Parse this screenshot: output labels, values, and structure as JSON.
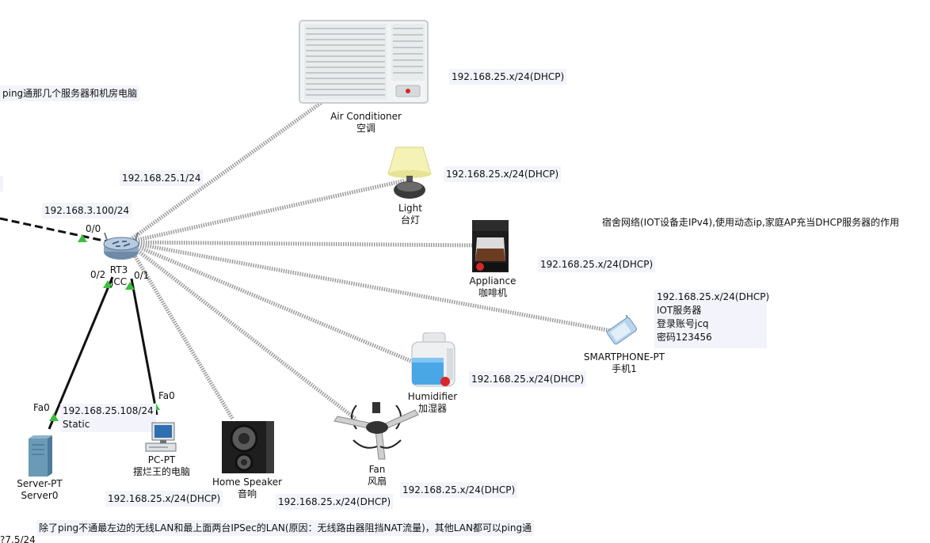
{
  "colors": {
    "wired": "#111111",
    "wireless": "#9a9a9a",
    "link_up": "#3cbf3c",
    "label_bg": "#f3f4fb"
  },
  "notes": {
    "top_left": "ping通那几个服务器和机房电脑",
    "router_ip": "192.168.25.1/24",
    "wan_ip": "192.168.3.100/24",
    "ac_ip": "192.168.25.x/24(DHCP)",
    "light_ip": "192.168.25.x/24(DHCP)",
    "appliance_ip": "192.168.25.x/24(DHCP)",
    "humidifier_ip": "192.168.25.x/24(DHCP)",
    "pc_ip": "192.168.25.x/24(DHCP)",
    "speaker_ip": "192.168.25.x/24(DHCP)",
    "fan_ip": "192.168.25.x/24(DHCP)",
    "server_ip": "192.168.25.108/24",
    "server_mode": "Static",
    "dorm_note": "宿舍网络(IOT设备走IPv4),使用动态ip,家庭AP充当DHCP服务器的作用",
    "phone_ip": "192.168.25.x/24(DHCP)",
    "phone_iot": "IOT服务器",
    "phone_account": "登录账号jcq",
    "phone_password": "密码123456",
    "bottom_note": "除了ping不通最左边的无线LAN和最上面两台IPSec的LAN(原因：无线路由器阻挡NAT流量)，其他LAN都可以ping通",
    "bottom_left_cut": "?7.5/24"
  },
  "ports": {
    "r_wan": "0/0",
    "r_left": "0/2",
    "r_right": "0/1",
    "server": "Fa0",
    "pc": "Fa0"
  },
  "devices": {
    "router": {
      "name": "RT3",
      "label": "JCC",
      "icon": "router-icon"
    },
    "ac": {
      "name": "Air Conditioner",
      "label": "空调",
      "icon": "air-conditioner-icon"
    },
    "light": {
      "name": "Light",
      "label": "台灯",
      "icon": "lamp-icon"
    },
    "appliance": {
      "name": "Appliance",
      "label": "咖啡机",
      "icon": "coffee-maker-icon"
    },
    "phone": {
      "name": "SMARTPHONE-PT",
      "label": "手机1",
      "icon": "smartphone-icon"
    },
    "humidifier": {
      "name": "Humidifier",
      "label": "加湿器",
      "icon": "humidifier-icon"
    },
    "fan": {
      "name": "Fan",
      "label": "风扇",
      "icon": "ceiling-fan-icon"
    },
    "speaker": {
      "name": "Home Speaker",
      "label": "音响",
      "icon": "speaker-icon"
    },
    "pc": {
      "name": "PC-PT",
      "label": "摆烂王的电脑",
      "icon": "pc-icon"
    },
    "server": {
      "name": "Server-PT",
      "label": "Server0",
      "icon": "server-icon"
    }
  }
}
